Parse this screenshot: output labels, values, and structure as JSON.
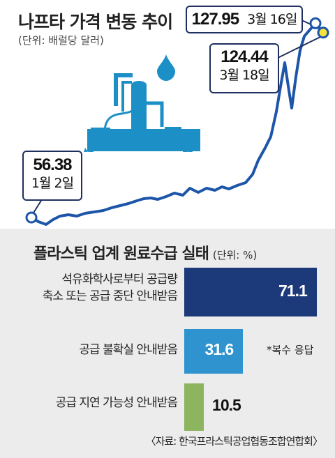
{
  "line_chart": {
    "title": "나프타 가격 변동 추이",
    "unit": "(단위: 배럴당 달러)",
    "start_label": {
      "value": "56.38",
      "date": "1월 2일"
    },
    "peak_label": {
      "value": "127.95",
      "date": "3월 16일"
    },
    "end_label": {
      "value": "124.44",
      "date": "3월 18일"
    }
  },
  "bar_chart": {
    "title": "플라스틱 업계 원료수급 실태",
    "unit": "(단위: %)",
    "note": "*복수 응답",
    "source": "〈자료: 한국프라스틱공업협동조합연합회〉"
  },
  "colors": {
    "navy": "#1c3a7a",
    "sky": "#2e93cf",
    "green": "#8db45e",
    "line": "#1d55a8",
    "icon": "#1d8fc7"
  },
  "icons": [
    "petrochemical-plant-icon",
    "oil-drop-icon"
  ],
  "chart_data": [
    {
      "type": "line",
      "title": "나프타 가격 변동 추이",
      "ylabel": "배럴당 달러",
      "x": [
        "1월 2일",
        "3월 16일",
        "3월 18일"
      ],
      "series": [
        {
          "values": [
            56.38,
            127.95,
            124.44
          ]
        }
      ],
      "annotations": [
        {
          "x": "1월 2일",
          "y": 56.38,
          "label": "56.38"
        },
        {
          "x": "3월 16일",
          "y": 127.95,
          "label": "127.95"
        },
        {
          "x": "3월 18일",
          "y": 124.44,
          "label": "124.44"
        }
      ],
      "grid": false
    },
    {
      "type": "bar",
      "title": "플라스틱 업계 원료수급 실태",
      "ylabel": "%",
      "categories": [
        "석유화학사로부터 공급량 축소 또는 공급 중단 안내받음",
        "공급 불확실 안내받음",
        "공급 지연 가능성 안내받음"
      ],
      "values": [
        71.1,
        31.6,
        10.5
      ],
      "xlim": [
        0,
        75
      ]
    }
  ]
}
